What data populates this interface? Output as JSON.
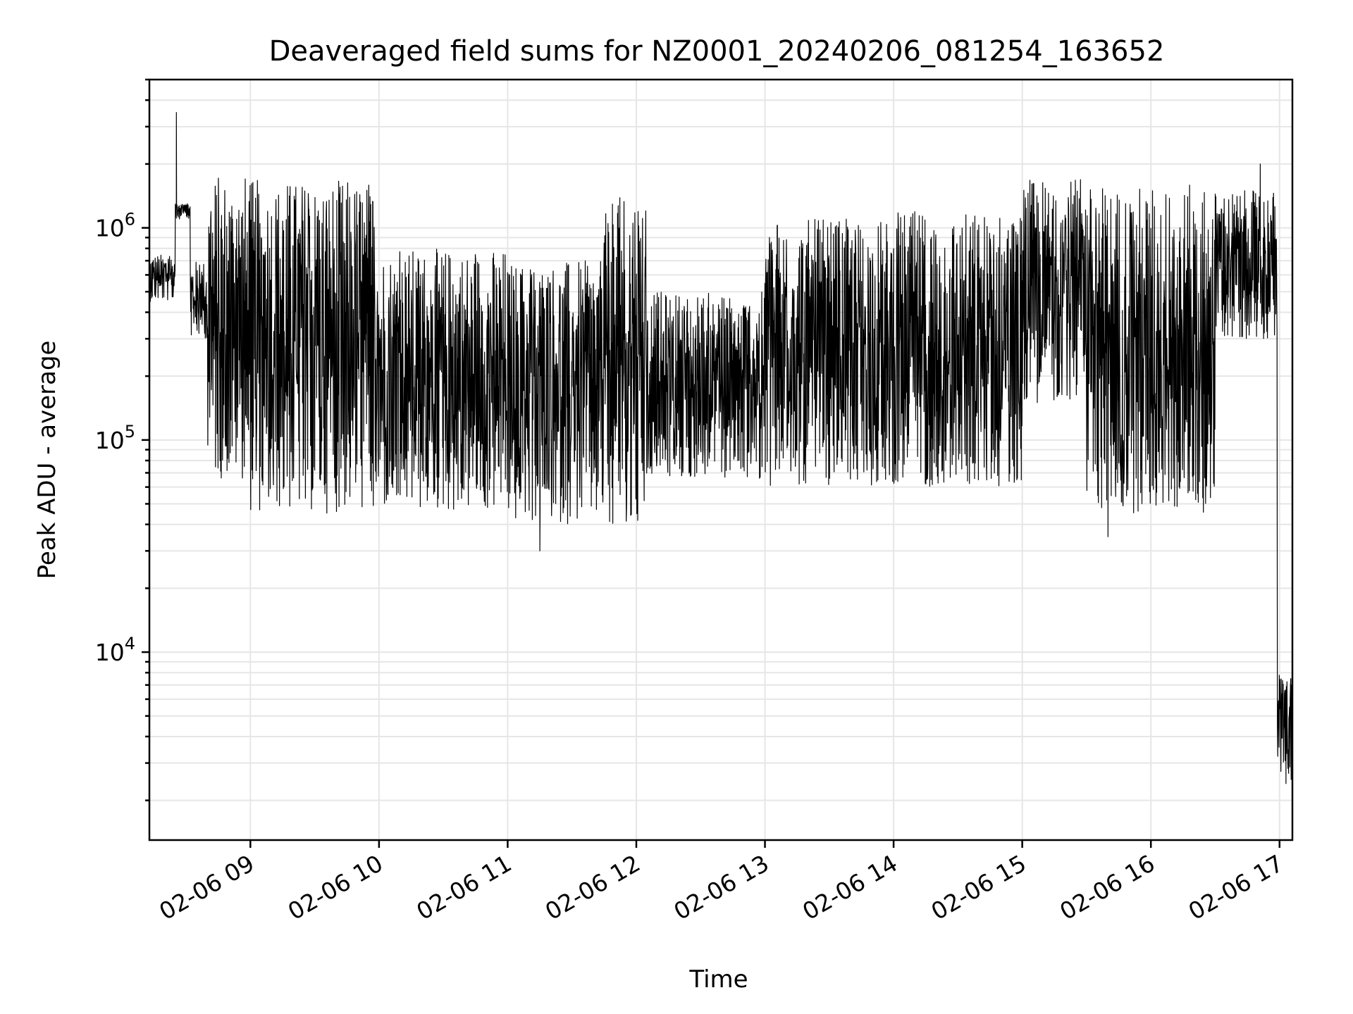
{
  "chart_data": {
    "type": "line",
    "title": "Deaveraged field sums for NZ0001_20240206_081254_163652",
    "xlabel": "Time",
    "ylabel": "Peak ADU - average",
    "yscale": "log",
    "grid": "on",
    "legend": "none",
    "xlim": [
      "2024-02-06 08:12:54",
      "2024-02-06 17:06:00"
    ],
    "ylim": [
      1300,
      5000000
    ],
    "x_ticks": [
      {
        "value": "2024-02-06 09:00",
        "label": "02-06 09"
      },
      {
        "value": "2024-02-06 10:00",
        "label": "02-06 10"
      },
      {
        "value": "2024-02-06 11:00",
        "label": "02-06 11"
      },
      {
        "value": "2024-02-06 12:00",
        "label": "02-06 12"
      },
      {
        "value": "2024-02-06 13:00",
        "label": "02-06 13"
      },
      {
        "value": "2024-02-06 14:00",
        "label": "02-06 14"
      },
      {
        "value": "2024-02-06 15:00",
        "label": "02-06 15"
      },
      {
        "value": "2024-02-06 16:00",
        "label": "02-06 16"
      },
      {
        "value": "2024-02-06 17:00",
        "label": "02-06 17"
      }
    ],
    "y_ticks": [
      {
        "value": 10000,
        "base": "10",
        "exp": "4"
      },
      {
        "value": 100000,
        "base": "10",
        "exp": "5"
      },
      {
        "value": 1000000,
        "base": "10",
        "exp": "6"
      }
    ],
    "line_color": "#000000",
    "segments": [
      {
        "start": "2024-02-06 08:12:54",
        "end": "2024-02-06 08:25:00",
        "low": 450000,
        "high": 750000
      },
      {
        "start": "2024-02-06 08:25:00",
        "end": "2024-02-06 08:32:00",
        "low": 1100000,
        "high": 1300000
      },
      {
        "start": "2024-02-06 08:32:00",
        "end": "2024-02-06 08:40:00",
        "low": 300000,
        "high": 700000
      },
      {
        "start": "2024-02-06 08:40:00",
        "end": "2024-02-06 09:00:00",
        "low": 65000,
        "high": 1800000
      },
      {
        "start": "2024-02-06 09:00:00",
        "end": "2024-02-06 10:00:00",
        "low": 45000,
        "high": 1700000
      },
      {
        "start": "2024-02-06 10:00:00",
        "end": "2024-02-06 11:00:00",
        "low": 45000,
        "high": 800000
      },
      {
        "start": "2024-02-06 11:00:00",
        "end": "2024-02-06 11:45:00",
        "low": 40000,
        "high": 700000
      },
      {
        "start": "2024-02-06 11:45:00",
        "end": "2024-02-06 12:05:00",
        "low": 40000,
        "high": 1600000
      },
      {
        "start": "2024-02-06 12:05:00",
        "end": "2024-02-06 13:00:00",
        "low": 65000,
        "high": 500000
      },
      {
        "start": "2024-02-06 13:00:00",
        "end": "2024-02-06 14:00:00",
        "low": 60000,
        "high": 1100000
      },
      {
        "start": "2024-02-06 14:00:00",
        "end": "2024-02-06 15:00:00",
        "low": 60000,
        "high": 1200000
      },
      {
        "start": "2024-02-06 15:00:00",
        "end": "2024-02-06 15:30:00",
        "low": 150000,
        "high": 1700000
      },
      {
        "start": "2024-02-06 15:30:00",
        "end": "2024-02-06 16:30:00",
        "low": 45000,
        "high": 1600000
      },
      {
        "start": "2024-02-06 16:30:00",
        "end": "2024-02-06 16:59:00",
        "low": 300000,
        "high": 1500000
      },
      {
        "start": "2024-02-06 16:59:00",
        "end": "2024-02-06 17:06:00",
        "low": 2500,
        "high": 8000
      }
    ],
    "spikes": [
      {
        "x": "2024-02-06 08:25:30",
        "y": 3500000
      },
      {
        "x": "2024-02-06 11:15:00",
        "y": 30000
      },
      {
        "x": "2024-02-06 15:40:00",
        "y": 35000
      },
      {
        "x": "2024-02-06 16:51:00",
        "y": 2000000
      },
      {
        "x": "2024-02-06 17:03:00",
        "y": 2400
      }
    ]
  }
}
